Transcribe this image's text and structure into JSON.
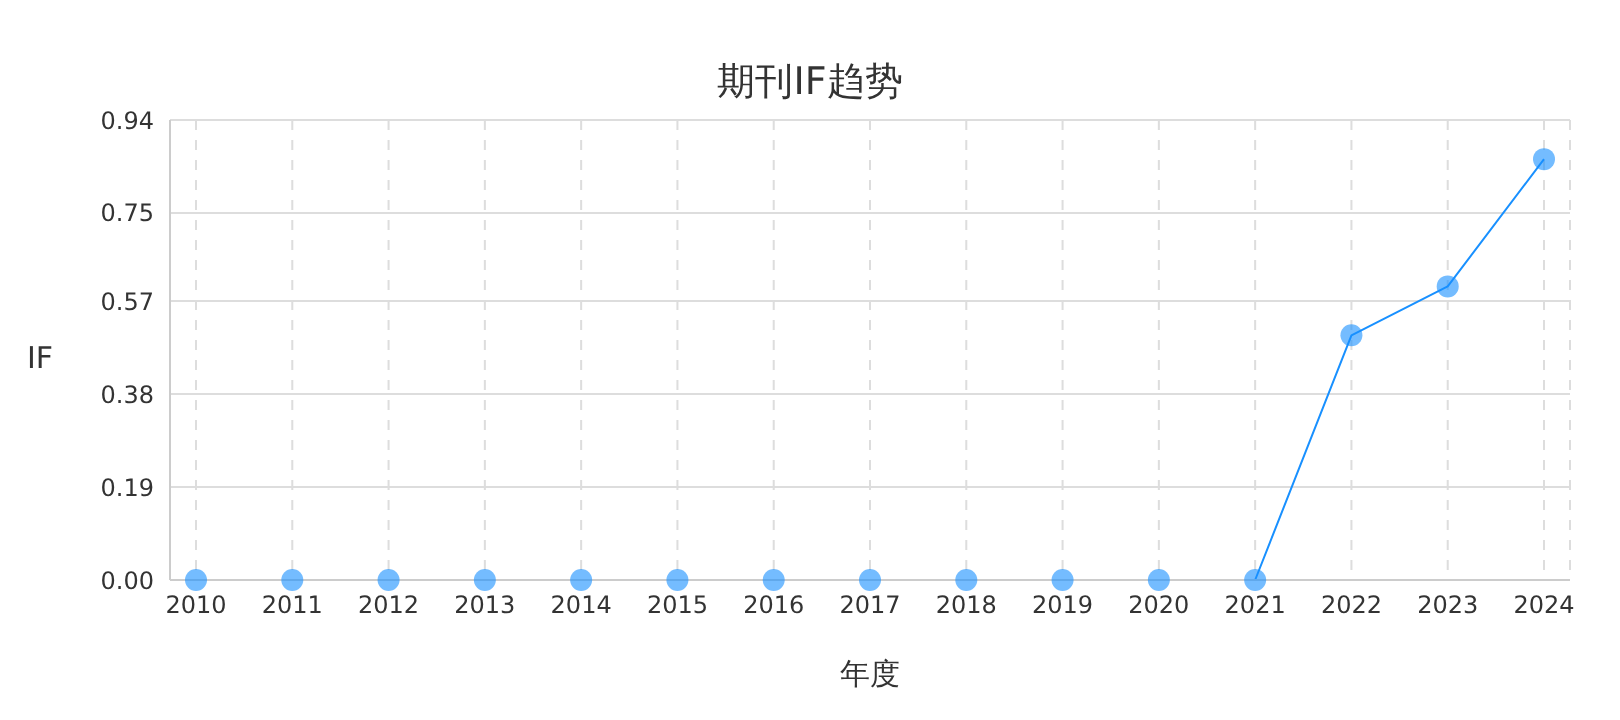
{
  "chart_data": {
    "type": "line",
    "title": "期刊IF趋势",
    "xlabel": "年度",
    "ylabel": "IF",
    "categories": [
      "2010",
      "2011",
      "2012",
      "2013",
      "2014",
      "2015",
      "2016",
      "2017",
      "2018",
      "2019",
      "2020",
      "2021",
      "2022",
      "2023",
      "2024"
    ],
    "series": [
      {
        "color": "#1890ff",
        "values": [
          0,
          0,
          0,
          0,
          0,
          0,
          0,
          0,
          0,
          0,
          0,
          0,
          0.5,
          0.6,
          0.86
        ]
      }
    ],
    "ylim": [
      0,
      0.94
    ],
    "yticks": [
      {
        "value": 0,
        "label": "0.00"
      },
      0.19,
      0.38,
      0.57,
      0.75,
      0.94
    ],
    "grid": true,
    "marker": "circle",
    "line_style": "solid"
  }
}
